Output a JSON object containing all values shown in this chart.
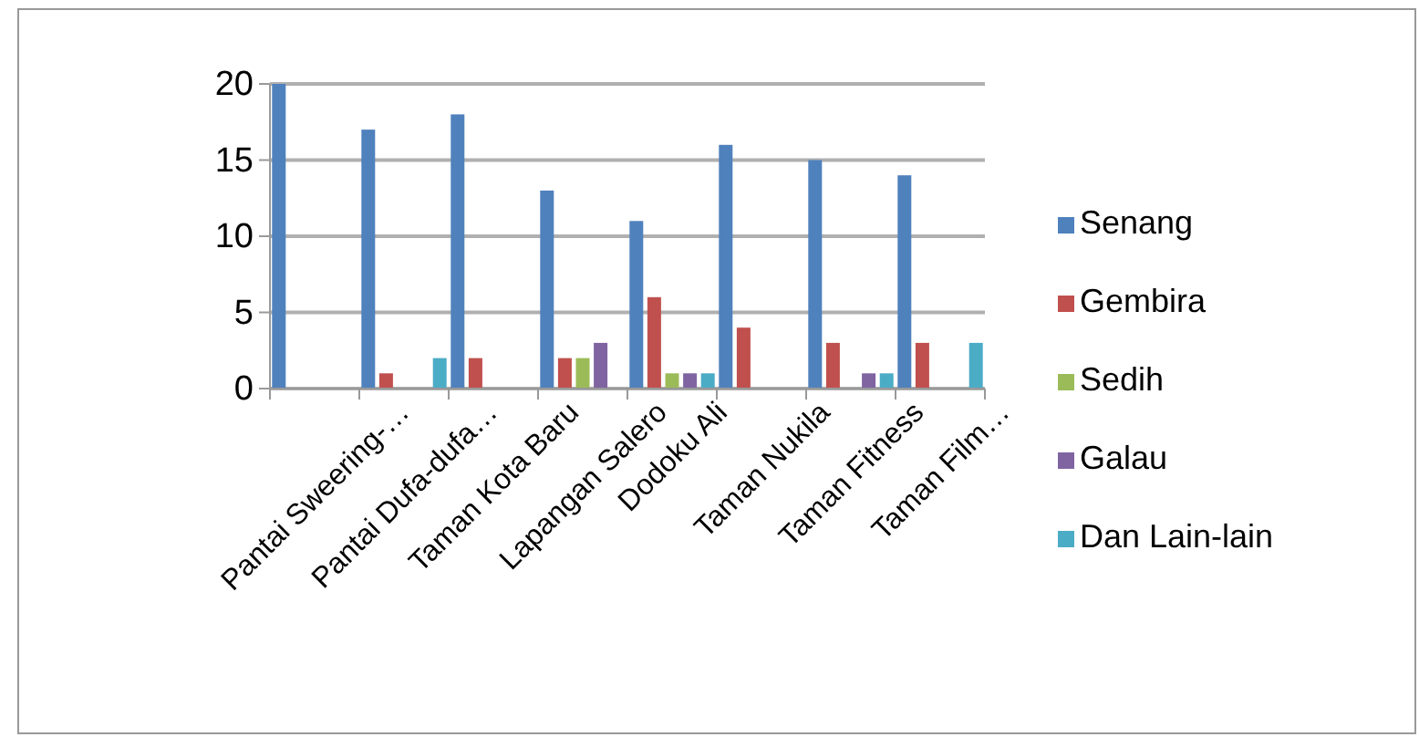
{
  "chart_data": {
    "type": "bar",
    "categories": [
      "Pantai Sweering-…",
      "Pantai Dufa-dufa…",
      "Taman Kota Baru",
      "Lapangan Salero",
      "Dodoku Ali",
      "Taman Nukila",
      "Taman Fitness",
      "Taman Film…"
    ],
    "series": [
      {
        "name": "Senang",
        "color": "#4f81bd",
        "values": [
          20,
          17,
          18,
          13,
          11,
          16,
          15,
          14
        ]
      },
      {
        "name": "Gembira",
        "color": "#c0504d",
        "values": [
          0,
          1,
          2,
          2,
          6,
          4,
          3,
          3
        ]
      },
      {
        "name": "Sedih",
        "color": "#9bbb59",
        "values": [
          0,
          0,
          0,
          2,
          1,
          0,
          0,
          0
        ]
      },
      {
        "name": "Galau",
        "color": "#8064a2",
        "values": [
          0,
          0,
          0,
          3,
          1,
          0,
          1,
          0
        ]
      },
      {
        "name": "Dan Lain-lain",
        "color": "#4bacc6",
        "values": [
          0,
          2,
          0,
          0,
          1,
          0,
          1,
          3
        ]
      }
    ],
    "ylim": [
      0,
      20
    ],
    "yticks": [
      0,
      5,
      10,
      15,
      20
    ],
    "grid": "y",
    "legend": "right"
  }
}
